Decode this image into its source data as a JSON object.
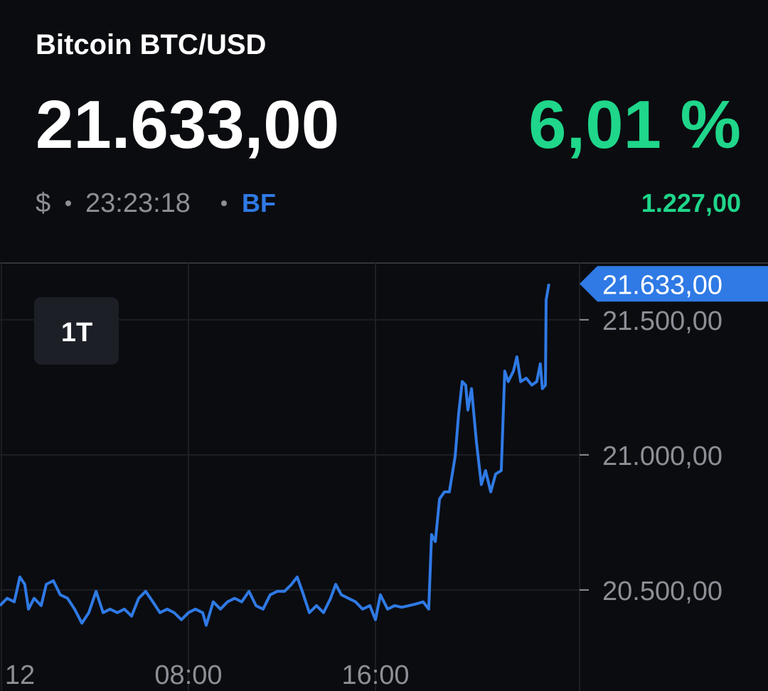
{
  "header": {
    "title": "Bitcoin BTC/USD",
    "price": "21.633,00",
    "change_percent": "6,01 %",
    "currency": "$",
    "time": "23:23:18",
    "source": "BF",
    "change_absolute": "1.227,00"
  },
  "range_button": "1T",
  "chart_data": {
    "type": "line",
    "color": "#2f7ae5",
    "x": [
      -0.06,
      0.24,
      0.55,
      0.79,
      1.0,
      1.16,
      1.4,
      1.7,
      1.92,
      2.22,
      2.52,
      2.83,
      3.13,
      3.44,
      3.74,
      4.05,
      4.35,
      4.65,
      4.96,
      5.26,
      5.57,
      5.87,
      6.17,
      6.48,
      6.78,
      7.09,
      7.39,
      7.7,
      8.0,
      8.3,
      8.61,
      8.76,
      9.06,
      9.37,
      9.67,
      9.98,
      10.28,
      10.59,
      10.89,
      11.19,
      11.5,
      11.8,
      12.11,
      12.41,
      12.65,
      12.87,
      13.17,
      13.48,
      13.78,
      14.08,
      14.3,
      14.54,
      14.84,
      15.15,
      15.45,
      15.76,
      16.0,
      16.21,
      16.52,
      16.82,
      17.13,
      17.43,
      17.73,
      18.04,
      18.28,
      18.4,
      18.56,
      18.74,
      18.95,
      19.16,
      19.41,
      19.56,
      19.71,
      19.86,
      19.95,
      20.11,
      20.32,
      20.53,
      20.71,
      20.93,
      21.14,
      21.38,
      21.53,
      21.68,
      21.9,
      22.05,
      22.21,
      22.45,
      22.69,
      22.9,
      23.05,
      23.14,
      23.27,
      23.3,
      23.42
    ],
    "values": [
      20442,
      20469,
      20456,
      20548,
      20521,
      20429,
      20469,
      20442,
      20521,
      20534,
      20482,
      20469,
      20429,
      20377,
      20416,
      20495,
      20416,
      20429,
      20416,
      20429,
      20403,
      20469,
      20495,
      20456,
      20416,
      20429,
      20416,
      20390,
      20416,
      20429,
      20416,
      20369,
      20456,
      20429,
      20456,
      20469,
      20456,
      20495,
      20442,
      20429,
      20482,
      20495,
      20495,
      20521,
      20548,
      20495,
      20416,
      20442,
      20416,
      20469,
      20521,
      20482,
      20469,
      20456,
      20429,
      20442,
      20390,
      20482,
      20429,
      20442,
      20436,
      20442,
      20448,
      20456,
      20429,
      20705,
      20679,
      20837,
      20863,
      20863,
      20995,
      21153,
      21271,
      21258,
      21166,
      21245,
      21047,
      20890,
      20942,
      20863,
      20929,
      20942,
      21310,
      21271,
      21310,
      21363,
      21271,
      21284,
      21258,
      21271,
      21337,
      21245,
      21258,
      21573,
      21633
    ],
    "xlim": [
      -0.06,
      24.73
    ],
    "xticks": [
      {
        "value": 0,
        "label": "12"
      },
      {
        "value": 8,
        "label": "08:00"
      },
      {
        "value": 16,
        "label": "16:00"
      }
    ],
    "ylim": [
      20126,
      21710
    ],
    "yticks": [
      {
        "value": 20500,
        "label": "20.500,00"
      },
      {
        "value": 21000,
        "label": "21.000,00"
      },
      {
        "value": 21500,
        "label": "21.500,00"
      }
    ],
    "grid": true,
    "current_price_tag": {
      "value": 21633,
      "label": "21.633,00"
    }
  }
}
